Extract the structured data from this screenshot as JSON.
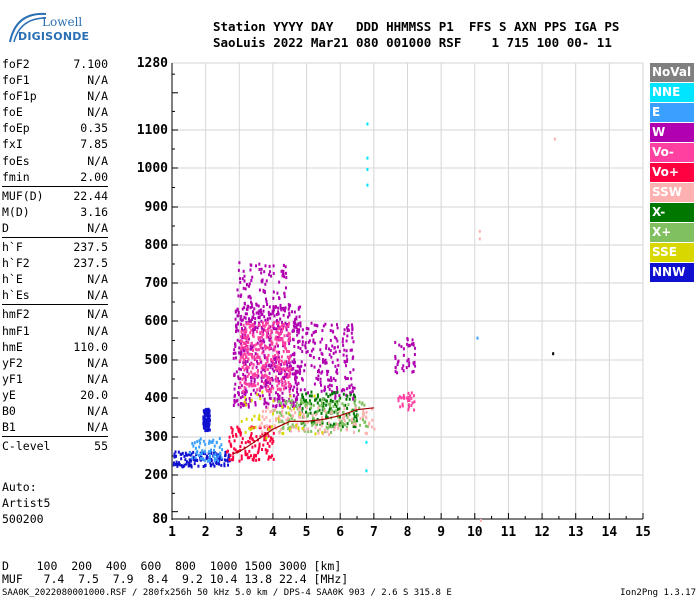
{
  "logo": {
    "line1": "Lowell",
    "line2": "DIGISONDE"
  },
  "header": {
    "line1": "Station YYYY DAY   DDD HHMMSS P1  FFS S AXN PPS IGA PS",
    "line2": "SaoLuis 2022 Mar21 080 001000 RSF    1 715 100 00- 11"
  },
  "params": [
    {
      "label": "foF2",
      "value": "7.100"
    },
    {
      "label": "foF1",
      "value": "N/A"
    },
    {
      "label": "foF1p",
      "value": "N/A"
    },
    {
      "label": "foE",
      "value": "N/A"
    },
    {
      "label": "foEp",
      "value": "0.35"
    },
    {
      "label": "fxI",
      "value": "7.85"
    },
    {
      "label": "foEs",
      "value": "N/A"
    },
    {
      "label": "fmin",
      "value": "2.00"
    },
    {
      "label": "MUF(D)",
      "value": "22.44"
    },
    {
      "label": "M(D)",
      "value": "3.16"
    },
    {
      "label": "D",
      "value": "N/A"
    },
    {
      "label": "h`F",
      "value": "237.5"
    },
    {
      "label": "h`F2",
      "value": "237.5"
    },
    {
      "label": "h`E",
      "value": "N/A"
    },
    {
      "label": "h`Es",
      "value": "N/A"
    },
    {
      "label": "hmF2",
      "value": "N/A"
    },
    {
      "label": "hmF1",
      "value": "N/A"
    },
    {
      "label": "hmE",
      "value": "110.0"
    },
    {
      "label": "yF2",
      "value": "N/A"
    },
    {
      "label": "yF1",
      "value": "N/A"
    },
    {
      "label": "yE",
      "value": "20.0"
    },
    {
      "label": "B0",
      "value": "N/A"
    },
    {
      "label": "B1",
      "value": "N/A"
    },
    {
      "label": "C-level",
      "value": "55"
    }
  ],
  "auto": [
    "Auto:",
    "Artist5",
    "500200"
  ],
  "legend": [
    {
      "label": "NoVal",
      "color": "#808080"
    },
    {
      "label": "NNE",
      "color": "#00e5ff"
    },
    {
      "label": "E",
      "color": "#3aa0ff"
    },
    {
      "label": "W",
      "color": "#b000b0"
    },
    {
      "label": "Vo-",
      "color": "#ff40a0"
    },
    {
      "label": "Vo+",
      "color": "#ff0040"
    },
    {
      "label": "SSW",
      "color": "#ffb0b0"
    },
    {
      "label": "X-",
      "color": "#007800"
    },
    {
      "label": "X+",
      "color": "#80c060"
    },
    {
      "label": "SSE",
      "color": "#d8d800"
    },
    {
      "label": "NNW",
      "color": "#1010d0"
    }
  ],
  "dtable": {
    "line1": "D    100  200  400  600  800  1000 1500 3000 [km]",
    "line2": "MUF   7.4  7.5  7.9  8.4  9.2 10.4 13.8 22.4 [MHz]"
  },
  "footer": {
    "left": "SAA0K_2022080001000.RSF / 280fx256h 50 kHz 5.0 km / DPS-4 SAA0K 903 / 2.6 S 315.8 E",
    "right": "Ion2Png 1.3.17"
  },
  "chart_data": {
    "type": "scatter",
    "title": "",
    "xlabel": "",
    "ylabel": "",
    "xlim": [
      1,
      15
    ],
    "ylim": [
      80,
      1280
    ],
    "x_ticks": [
      1,
      2,
      3,
      4,
      5,
      6,
      7,
      8,
      9,
      10,
      11,
      12,
      13,
      14,
      15
    ],
    "y_ticks": [
      80,
      200,
      300,
      400,
      500,
      600,
      700,
      800,
      900,
      1000,
      1100,
      1280
    ],
    "grid": true,
    "legend_position": "right",
    "trace": {
      "name": "",
      "color": "#a00000",
      "points": [
        [
          2.8,
          255
        ],
        [
          3.0,
          262
        ],
        [
          3.2,
          272
        ],
        [
          3.5,
          290
        ],
        [
          4.0,
          320
        ],
        [
          4.5,
          340
        ],
        [
          5.0,
          340
        ],
        [
          5.5,
          345
        ],
        [
          6.0,
          355
        ],
        [
          6.5,
          370
        ],
        [
          7.0,
          375
        ]
      ]
    },
    "clusters": [
      {
        "x": [
          1.9,
          2.1
        ],
        "y": [
          320,
          375
        ],
        "color": "#1010d0",
        "n": 110
      },
      {
        "x": [
          1.0,
          2.7
        ],
        "y": [
          225,
          265
        ],
        "color": "#1010d0",
        "n": 120
      },
      {
        "x": [
          1.5,
          2.5
        ],
        "y": [
          240,
          300
        ],
        "color": "#3aa0ff",
        "n": 60
      },
      {
        "x": [
          2.8,
          4.8
        ],
        "y": [
          380,
          650
        ],
        "color": "#b000b0",
        "n": 520
      },
      {
        "x": [
          2.9,
          4.4
        ],
        "y": [
          580,
          760
        ],
        "color": "#b000b0",
        "n": 120
      },
      {
        "x": [
          3.0,
          4.5
        ],
        "y": [
          420,
          600
        ],
        "color": "#ff40a0",
        "n": 300
      },
      {
        "x": [
          4.8,
          6.4
        ],
        "y": [
          400,
          600
        ],
        "color": "#b000b0",
        "n": 180
      },
      {
        "x": [
          4.8,
          6.5
        ],
        "y": [
          330,
          420
        ],
        "color": "#007800",
        "n": 120
      },
      {
        "x": [
          4.0,
          6.8
        ],
        "y": [
          315,
          400
        ],
        "color": "#80c060",
        "n": 140
      },
      {
        "x": [
          2.6,
          4.0
        ],
        "y": [
          240,
          330
        ],
        "color": "#ff0040",
        "n": 120
      },
      {
        "x": [
          3.5,
          7.0
        ],
        "y": [
          310,
          380
        ],
        "color": "#ffb0b0",
        "n": 110
      },
      {
        "x": [
          3.0,
          5.5
        ],
        "y": [
          300,
          420
        ],
        "color": "#d8d800",
        "n": 40
      },
      {
        "x": [
          7.6,
          8.2
        ],
        "y": [
          470,
          560
        ],
        "color": "#b000b0",
        "n": 40
      },
      {
        "x": [
          7.7,
          8.2
        ],
        "y": [
          370,
          420
        ],
        "color": "#ff40a0",
        "n": 30
      }
    ],
    "isolated": [
      {
        "x": 6.78,
        "y": 1120,
        "color": "#00e5ff"
      },
      {
        "x": 6.78,
        "y": 1030,
        "color": "#00e5ff"
      },
      {
        "x": 6.78,
        "y": 1000,
        "color": "#00e5ff"
      },
      {
        "x": 6.78,
        "y": 960,
        "color": "#00e5ff"
      },
      {
        "x": 10.12,
        "y": 840,
        "color": "#ffb0b0"
      },
      {
        "x": 10.12,
        "y": 820,
        "color": "#ffb0b0"
      },
      {
        "x": 10.05,
        "y": 560,
        "color": "#3aa0ff"
      },
      {
        "x": 12.3,
        "y": 520,
        "color": "#000000"
      },
      {
        "x": 12.35,
        "y": 1080,
        "color": "#ffb0b0"
      },
      {
        "x": 10.15,
        "y": 80,
        "color": "#ffb0b0"
      },
      {
        "x": 6.75,
        "y": 215,
        "color": "#00e5ff"
      },
      {
        "x": 6.75,
        "y": 290,
        "color": "#00e5ff"
      }
    ]
  }
}
